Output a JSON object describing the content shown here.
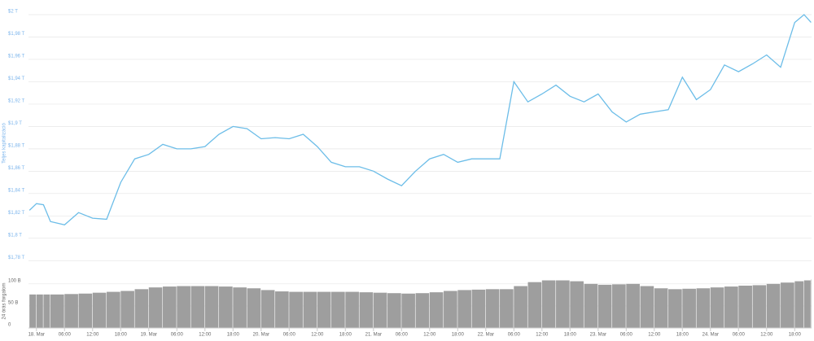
{
  "chart_data": {
    "type": "line",
    "y_label": "Teljes kapitalizáció",
    "volume_label": "24 órás forgalom",
    "color": "#6cbde8",
    "volume_color": "#9e9e9e",
    "grid": true,
    "x": [
      -1.5,
      0,
      1.5,
      3,
      6,
      9,
      12,
      15,
      18,
      21,
      24,
      27,
      30,
      33,
      36,
      39,
      42,
      45,
      48,
      51,
      54,
      57,
      60,
      63,
      66,
      69,
      72,
      75,
      78,
      81,
      84,
      87,
      90,
      93,
      96,
      99,
      102,
      105,
      108,
      111,
      114,
      117,
      120,
      123,
      126,
      129,
      132,
      135,
      138,
      141,
      144,
      147,
      150,
      153,
      156,
      159,
      162,
      164,
      165.5
    ],
    "values": [
      1.825,
      1.831,
      1.83,
      1.815,
      1.812,
      1.823,
      1.818,
      1.817,
      1.85,
      1.871,
      1.875,
      1.884,
      1.88,
      1.88,
      1.882,
      1.893,
      1.9,
      1.898,
      1.889,
      1.89,
      1.889,
      1.893,
      1.882,
      1.868,
      1.864,
      1.864,
      1.86,
      1.853,
      1.847,
      1.86,
      1.871,
      1.875,
      1.868,
      1.871,
      1.871,
      1.871,
      1.94,
      1.922,
      1.929,
      1.937,
      1.927,
      1.922,
      1.929,
      1.913,
      1.904,
      1.911,
      1.913,
      1.915,
      1.944,
      1.924,
      1.933,
      1.955,
      1.949,
      1.956,
      1.964,
      1.953,
      1.993,
      2.0,
      1.993
    ],
    "volume": [
      76,
      76,
      76,
      76,
      77,
      78,
      80,
      82,
      84,
      88,
      92,
      94,
      95,
      95,
      95,
      94,
      92,
      90,
      86,
      83,
      82,
      82,
      82,
      82,
      82,
      81,
      80,
      79,
      78,
      79,
      81,
      84,
      86,
      87,
      88,
      88,
      95,
      104,
      108,
      108,
      106,
      100,
      98,
      99,
      100,
      95,
      90,
      88,
      89,
      90,
      92,
      94,
      96,
      97,
      100,
      103,
      106,
      108,
      110
    ],
    "xlim": [
      -1.7,
      165.6
    ],
    "xticks": [
      {
        "value": 0,
        "label": "18. Mar"
      },
      {
        "value": 6,
        "label": "06:00"
      },
      {
        "value": 12,
        "label": "12:00"
      },
      {
        "value": 18,
        "label": "18:00"
      },
      {
        "value": 24,
        "label": "19. Mar"
      },
      {
        "value": 30,
        "label": "06:00"
      },
      {
        "value": 36,
        "label": "12:00"
      },
      {
        "value": 42,
        "label": "18:00"
      },
      {
        "value": 48,
        "label": "20. Mar"
      },
      {
        "value": 54,
        "label": "06:00"
      },
      {
        "value": 60,
        "label": "12:00"
      },
      {
        "value": 66,
        "label": "18:00"
      },
      {
        "value": 72,
        "label": "21. Mar"
      },
      {
        "value": 78,
        "label": "06:00"
      },
      {
        "value": 84,
        "label": "12:00"
      },
      {
        "value": 90,
        "label": "18:00"
      },
      {
        "value": 96,
        "label": "22. Mar"
      },
      {
        "value": 102,
        "label": "06:00"
      },
      {
        "value": 108,
        "label": "12:00"
      },
      {
        "value": 114,
        "label": "18:00"
      },
      {
        "value": 120,
        "label": "23. Mar"
      },
      {
        "value": 126,
        "label": "06:00"
      },
      {
        "value": 132,
        "label": "12:00"
      },
      {
        "value": 138,
        "label": "18:00"
      },
      {
        "value": 144,
        "label": "24. Mar"
      },
      {
        "value": 150,
        "label": "06:00"
      },
      {
        "value": 156,
        "label": "12:00"
      },
      {
        "value": 162,
        "label": "18:00"
      }
    ],
    "ylim": [
      1.77,
      2.0
    ],
    "yticks": [
      {
        "value": 2,
        "label": "$2 T"
      },
      {
        "value": 1.98,
        "label": "$1,98 T"
      },
      {
        "value": 1.96,
        "label": "$1,96 T"
      },
      {
        "value": 1.94,
        "label": "$1,94 T"
      },
      {
        "value": 1.92,
        "label": "$1,92 T"
      },
      {
        "value": 1.9,
        "label": "$1,9 T"
      },
      {
        "value": 1.88,
        "label": "$1,88 T"
      },
      {
        "value": 1.86,
        "label": "$1,86 T"
      },
      {
        "value": 1.84,
        "label": "$1,84 T"
      },
      {
        "value": 1.82,
        "label": "$1,82 T"
      },
      {
        "value": 1.8,
        "label": "$1,8 T"
      },
      {
        "value": 1.78,
        "label": "$1,78 T"
      }
    ],
    "volume_ylim": [
      0,
      120
    ],
    "volume_yticks": [
      0,
      {
        "value": 50,
        "label": "50 B"
      },
      {
        "value": 100,
        "label": "100 B"
      }
    ]
  }
}
